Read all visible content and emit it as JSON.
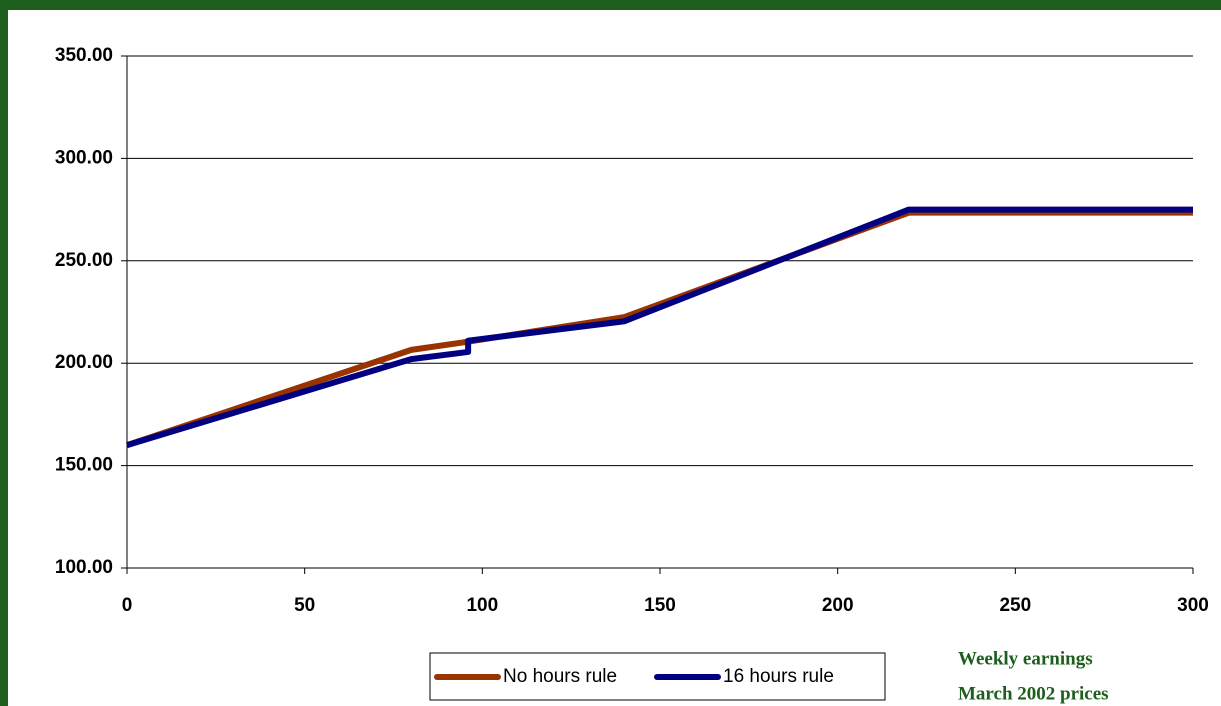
{
  "chart_data": {
    "type": "line",
    "series": [
      {
        "name": "No hours rule",
        "color": "#993300",
        "x": [
          0,
          80,
          96,
          140,
          220,
          300
        ],
        "values": [
          160,
          206.5,
          210.5,
          222.5,
          273.5,
          273.5
        ]
      },
      {
        "name": "16 hours rule",
        "color": "#000080",
        "x": [
          0,
          80,
          96,
          96,
          140,
          220,
          300
        ],
        "values": [
          160,
          202,
          205.5,
          211,
          220.5,
          275,
          275
        ]
      }
    ],
    "xlim": [
      0,
      300
    ],
    "xticks": [
      0,
      50,
      100,
      150,
      200,
      250,
      300
    ],
    "ylim": [
      100,
      350
    ],
    "yticks": [
      {
        "value": 100,
        "label": "100.00"
      },
      {
        "value": 150,
        "label": "150.00"
      },
      {
        "value": 200,
        "label": "200.00"
      },
      {
        "value": 250,
        "label": "250.00"
      },
      {
        "value": 300,
        "label": "300.00"
      },
      {
        "value": 350,
        "label": "350.00"
      }
    ],
    "grid": true,
    "annotations": [
      "Weekly earnings",
      "March 2002 prices"
    ]
  }
}
